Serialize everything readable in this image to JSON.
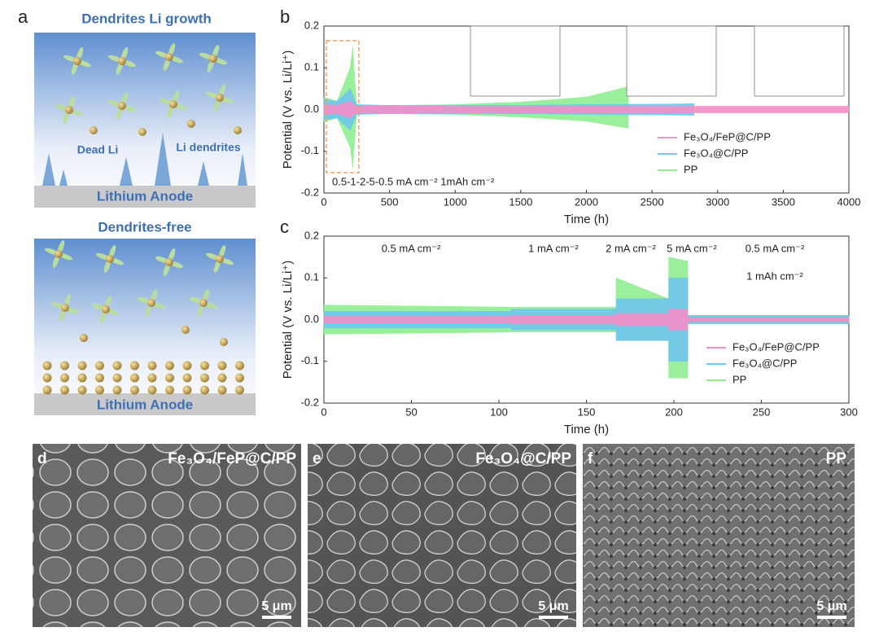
{
  "panels": [
    "a",
    "b",
    "c",
    "d",
    "e",
    "f"
  ],
  "schematic": {
    "top_title": "Dendrites Li growth",
    "dead_li": "Dead Li",
    "li_dendrites": "Li dendrites",
    "top_anode": "Lithium Anode",
    "bottom_title": "Dendrites-free",
    "bottom_anode": "Lithium Anode"
  },
  "sem": [
    {
      "label": "Fe₃O₄/FeP@C/PP",
      "scale": "5 μm"
    },
    {
      "label": "Fe₃O₄@C/PP",
      "scale": "5 μm"
    },
    {
      "label": "PP",
      "scale": "5 μm"
    }
  ],
  "chart_data": [
    {
      "type": "band",
      "xlabel": "Time (h)",
      "ylabel": "Potential (V vs. Li/Li⁺)",
      "annotations": [
        "0.5-1-2-5-0.5 mA cm⁻² 1mAh cm⁻²"
      ],
      "xlim": [
        0,
        4000
      ],
      "xticks": [
        0,
        500,
        1000,
        1500,
        2000,
        2500,
        3000,
        3500,
        4000
      ],
      "ylim": [
        -0.2,
        0.2
      ],
      "yticks": [
        -0.2,
        -0.1,
        {
          "value": 0,
          "label": "0.0"
        },
        0.1,
        0.2
      ],
      "legend": "lower right",
      "series": [
        {
          "name": "PP",
          "color": "#90ee90",
          "x": [
            0,
            100,
            200,
            220,
            250,
            500,
            1000,
            1500,
            2000,
            2320
          ],
          "upper": [
            0.03,
            0.02,
            0.1,
            0.15,
            0.01,
            0.01,
            0.012,
            0.018,
            0.03,
            0.055
          ],
          "lower": [
            -0.03,
            -0.02,
            -0.09,
            -0.14,
            -0.01,
            -0.01,
            -0.012,
            -0.018,
            -0.028,
            -0.045
          ]
        },
        {
          "name": "Fe₃O₄@C/PP",
          "color": "#6ec6ee",
          "x": [
            0,
            100,
            200,
            250,
            500,
            1000,
            1500,
            2000,
            2500,
            2820
          ],
          "upper": [
            0.025,
            0.02,
            0.05,
            0.012,
            0.01,
            0.01,
            0.01,
            0.012,
            0.013,
            0.014
          ],
          "lower": [
            -0.025,
            -0.02,
            -0.05,
            -0.012,
            -0.01,
            -0.01,
            -0.01,
            -0.012,
            -0.013,
            -0.014
          ]
        },
        {
          "name": "Fe₃O₄/FeP@C/PP",
          "color": "#f58fc8",
          "x": [
            0,
            100,
            200,
            250,
            1000,
            2000,
            3000,
            4000
          ],
          "upper": [
            0.012,
            0.01,
            0.02,
            0.008,
            0.008,
            0.008,
            0.008,
            0.008
          ],
          "lower": [
            -0.012,
            -0.01,
            -0.02,
            -0.008,
            -0.008,
            -0.008,
            -0.008,
            -0.008
          ]
        }
      ]
    },
    {
      "type": "band",
      "xlabel": "Time (h)",
      "ylabel": "Potential (V vs. Li/Li⁺)",
      "annotations": [
        "0.5 mA cm⁻²",
        "1 mA cm⁻²",
        "2 mA cm⁻²",
        "5 mA cm⁻²",
        "0.5 mA cm⁻²",
        "1 mAh cm⁻²"
      ],
      "xlim": [
        0,
        300
      ],
      "xticks": [
        0,
        50,
        100,
        150,
        200,
        250,
        300
      ],
      "ylim": [
        -0.2,
        0.2
      ],
      "yticks": [
        -0.2,
        -0.1,
        {
          "value": 0,
          "label": "0.0"
        },
        0.1,
        0.2
      ],
      "legend": "lower right",
      "series": [
        {
          "name": "PP",
          "color": "#90ee90",
          "x": [
            0,
            107,
            107,
            167,
            167,
            197,
            197,
            208,
            208,
            300
          ],
          "upper": [
            0.035,
            0.03,
            0.03,
            0.03,
            0.1,
            0.05,
            0.15,
            0.14,
            0.01,
            0.01
          ],
          "lower": [
            -0.035,
            -0.03,
            -0.03,
            -0.03,
            -0.05,
            -0.05,
            -0.14,
            -0.14,
            -0.01,
            -0.01
          ]
        },
        {
          "name": "Fe₃O₄@C/PP",
          "color": "#6ec6ee",
          "x": [
            0,
            107,
            107,
            167,
            167,
            197,
            197,
            208,
            208,
            300
          ],
          "upper": [
            0.02,
            0.02,
            0.025,
            0.025,
            0.05,
            0.05,
            0.1,
            0.1,
            0.01,
            0.01
          ],
          "lower": [
            -0.02,
            -0.02,
            -0.025,
            -0.025,
            -0.05,
            -0.05,
            -0.1,
            -0.1,
            -0.01,
            -0.01
          ]
        },
        {
          "name": "Fe₃O₄/FeP@C/PP",
          "color": "#f58fc8",
          "x": [
            0,
            107,
            107,
            167,
            167,
            197,
            197,
            208,
            208,
            300
          ],
          "upper": [
            0.008,
            0.008,
            0.01,
            0.01,
            0.015,
            0.015,
            0.025,
            0.025,
            0.005,
            0.005
          ],
          "lower": [
            -0.008,
            -0.008,
            -0.01,
            -0.01,
            -0.015,
            -0.015,
            -0.025,
            -0.025,
            -0.005,
            -0.005
          ]
        }
      ]
    }
  ]
}
